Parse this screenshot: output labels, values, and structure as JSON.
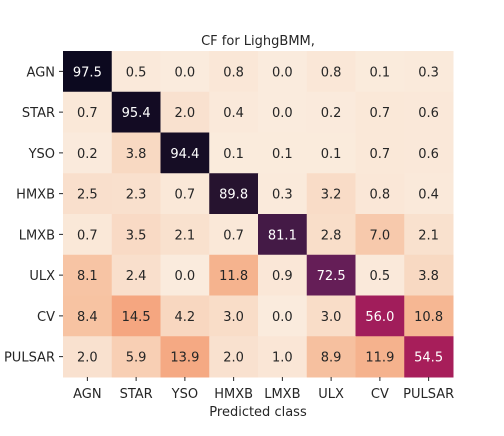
{
  "chart_data": {
    "type": "heatmap",
    "title": "CF for LighgBMM,",
    "xlabel": "Predicted class",
    "ylabel": "",
    "x_categories": [
      "AGN",
      "STAR",
      "YSO",
      "HMXB",
      "LMXB",
      "ULX",
      "CV",
      "PULSAR"
    ],
    "y_categories": [
      "AGN",
      "STAR",
      "YSO",
      "HMXB",
      "LMXB",
      "ULX",
      "CV",
      "PULSAR"
    ],
    "values": [
      [
        97.5,
        0.5,
        0.0,
        0.8,
        0.0,
        0.8,
        0.1,
        0.3
      ],
      [
        0.7,
        95.4,
        2.0,
        0.4,
        0.0,
        0.2,
        0.7,
        0.6
      ],
      [
        0.2,
        3.8,
        94.4,
        0.1,
        0.1,
        0.1,
        0.7,
        0.6
      ],
      [
        2.5,
        2.3,
        0.7,
        89.8,
        0.3,
        3.2,
        0.8,
        0.4
      ],
      [
        0.7,
        3.5,
        2.1,
        0.7,
        81.1,
        2.8,
        7.0,
        2.1
      ],
      [
        8.1,
        2.4,
        0.0,
        11.8,
        0.9,
        72.5,
        0.5,
        3.8
      ],
      [
        8.4,
        14.5,
        4.2,
        3.0,
        0.0,
        3.0,
        56.0,
        10.8
      ],
      [
        2.0,
        5.9,
        13.9,
        2.0,
        1.0,
        8.9,
        11.9,
        54.5
      ]
    ],
    "value_range": [
      0,
      100
    ],
    "colormap": "rocket_r",
    "colorbar": false,
    "grid": false
  },
  "colors": {
    "low": "#faebdd",
    "high": "#03051a",
    "text_dark": "#262626",
    "text_light": "#ffffff"
  }
}
